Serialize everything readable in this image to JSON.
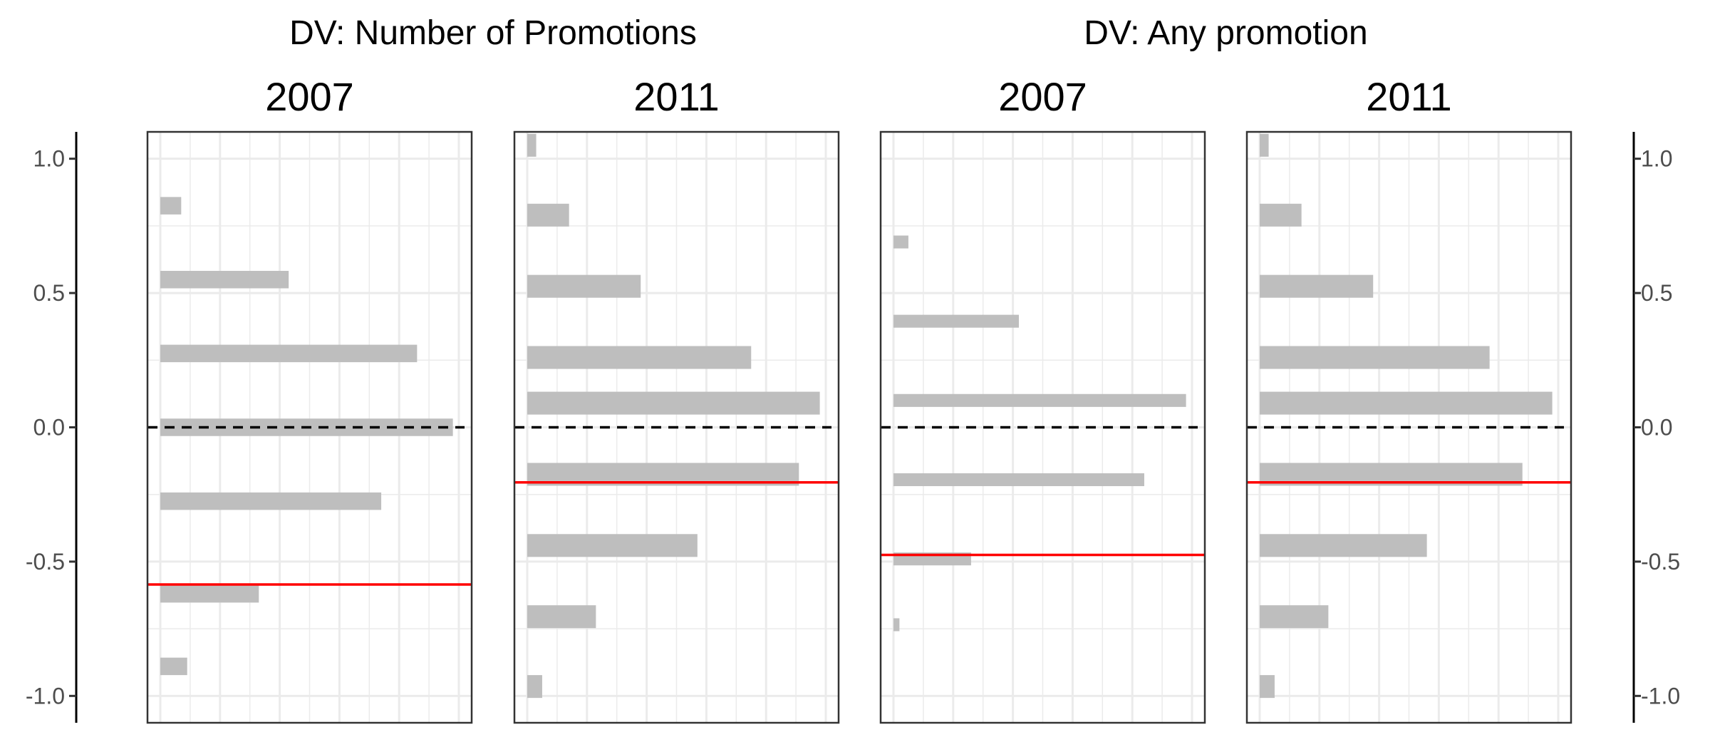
{
  "colors": {
    "bar": "#bebebe",
    "grid": "#ebebeb",
    "frame": "#333333",
    "zero_line": "#000000",
    "reference_line": "#ff0000",
    "tick_text": "#4d4d4d"
  },
  "chart_data": {
    "type": "bar",
    "orientation": "horizontal",
    "ylim": [
      -1.1,
      1.1
    ],
    "y_ticks": [
      1.0,
      0.5,
      0.0,
      -0.5,
      -1.0
    ],
    "y_tick_labels": [
      "1.0",
      "0.5",
      "0.0",
      "-0.5",
      "-1.0"
    ],
    "y_axis_sides": [
      "left",
      "right"
    ],
    "grid": true,
    "legend": "none",
    "x_axis_labels_shown": false,
    "zero_line_style": "dashed",
    "groups": [
      {
        "title": "DV: Number of Promotions",
        "panels": [
          0,
          1
        ]
      },
      {
        "title": "DV: Any promotion",
        "panels": [
          2,
          3
        ]
      }
    ],
    "panels": [
      {
        "title": "2007",
        "xlim": [
          0,
          1.0
        ],
        "bar_thickness": 0.065,
        "reference_line": -0.585,
        "bars": [
          {
            "y": 0.825,
            "value": 0.07
          },
          {
            "y": 0.55,
            "value": 0.43
          },
          {
            "y": 0.275,
            "value": 0.86
          },
          {
            "y": 0.0,
            "value": 0.98
          },
          {
            "y": -0.275,
            "value": 0.74
          },
          {
            "y": -0.62,
            "value": 0.33
          },
          {
            "y": -0.89,
            "value": 0.09
          }
        ]
      },
      {
        "title": "2011",
        "xlim": [
          0,
          1.0
        ],
        "bar_thickness": 0.085,
        "reference_line": -0.205,
        "bars": [
          {
            "y": 1.05,
            "value": 0.03
          },
          {
            "y": 0.79,
            "value": 0.14
          },
          {
            "y": 0.525,
            "value": 0.38
          },
          {
            "y": 0.26,
            "value": 0.75
          },
          {
            "y": 0.09,
            "value": 0.98
          },
          {
            "y": -0.175,
            "value": 0.91
          },
          {
            "y": -0.44,
            "value": 0.57
          },
          {
            "y": -0.705,
            "value": 0.23
          },
          {
            "y": -0.965,
            "value": 0.05
          }
        ]
      },
      {
        "title": "2007",
        "xlim": [
          0,
          1.0
        ],
        "bar_thickness": 0.048,
        "reference_line": -0.475,
        "bars": [
          {
            "y": 0.69,
            "value": 0.05
          },
          {
            "y": 0.395,
            "value": 0.42
          },
          {
            "y": 0.1,
            "value": 0.98
          },
          {
            "y": -0.195,
            "value": 0.84
          },
          {
            "y": -0.49,
            "value": 0.26
          },
          {
            "y": -0.735,
            "value": 0.02
          }
        ]
      },
      {
        "title": "2011",
        "xlim": [
          0,
          1.0
        ],
        "bar_thickness": 0.085,
        "reference_line": -0.205,
        "bars": [
          {
            "y": 1.05,
            "value": 0.03
          },
          {
            "y": 0.79,
            "value": 0.14
          },
          {
            "y": 0.525,
            "value": 0.38
          },
          {
            "y": 0.26,
            "value": 0.77
          },
          {
            "y": 0.09,
            "value": 0.98
          },
          {
            "y": -0.175,
            "value": 0.88
          },
          {
            "y": -0.44,
            "value": 0.56
          },
          {
            "y": -0.705,
            "value": 0.23
          },
          {
            "y": -0.965,
            "value": 0.05
          }
        ]
      }
    ]
  }
}
